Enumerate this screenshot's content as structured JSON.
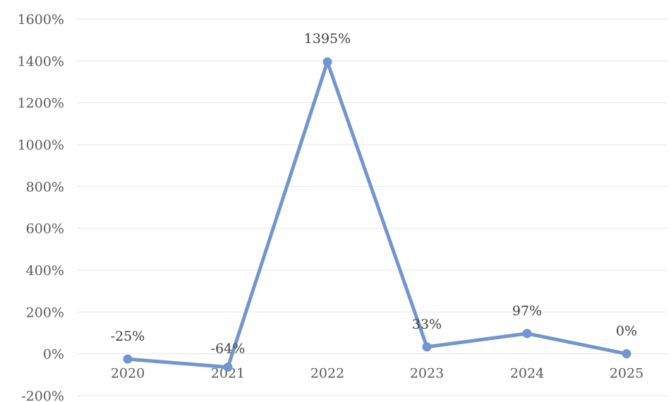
{
  "chart_data": {
    "type": "line",
    "title": "",
    "xlabel": "",
    "ylabel": "",
    "categories": [
      "2020",
      "2021",
      "2022",
      "2023",
      "2024",
      "2025"
    ],
    "series": [
      {
        "values": [
          -25,
          -64,
          1395,
          33,
          97,
          0
        ]
      }
    ],
    "data_labels": [
      "-25%",
      "-64%",
      "1395%",
      "33%",
      "97%",
      "0%"
    ],
    "ylim": [
      -200,
      1600
    ],
    "yticks": [
      1600,
      1400,
      1200,
      1000,
      800,
      600,
      400,
      200,
      0,
      -200
    ],
    "ytick_labels": [
      "1600%",
      "1400%",
      "1200%",
      "1000%",
      "800%",
      "600%",
      "400%",
      "200%",
      "0%",
      "-200%"
    ],
    "grid": true,
    "legend": "none",
    "series_color": "#7295d0",
    "grid_color": "#e6e6e6",
    "tick_color": "#595959"
  }
}
